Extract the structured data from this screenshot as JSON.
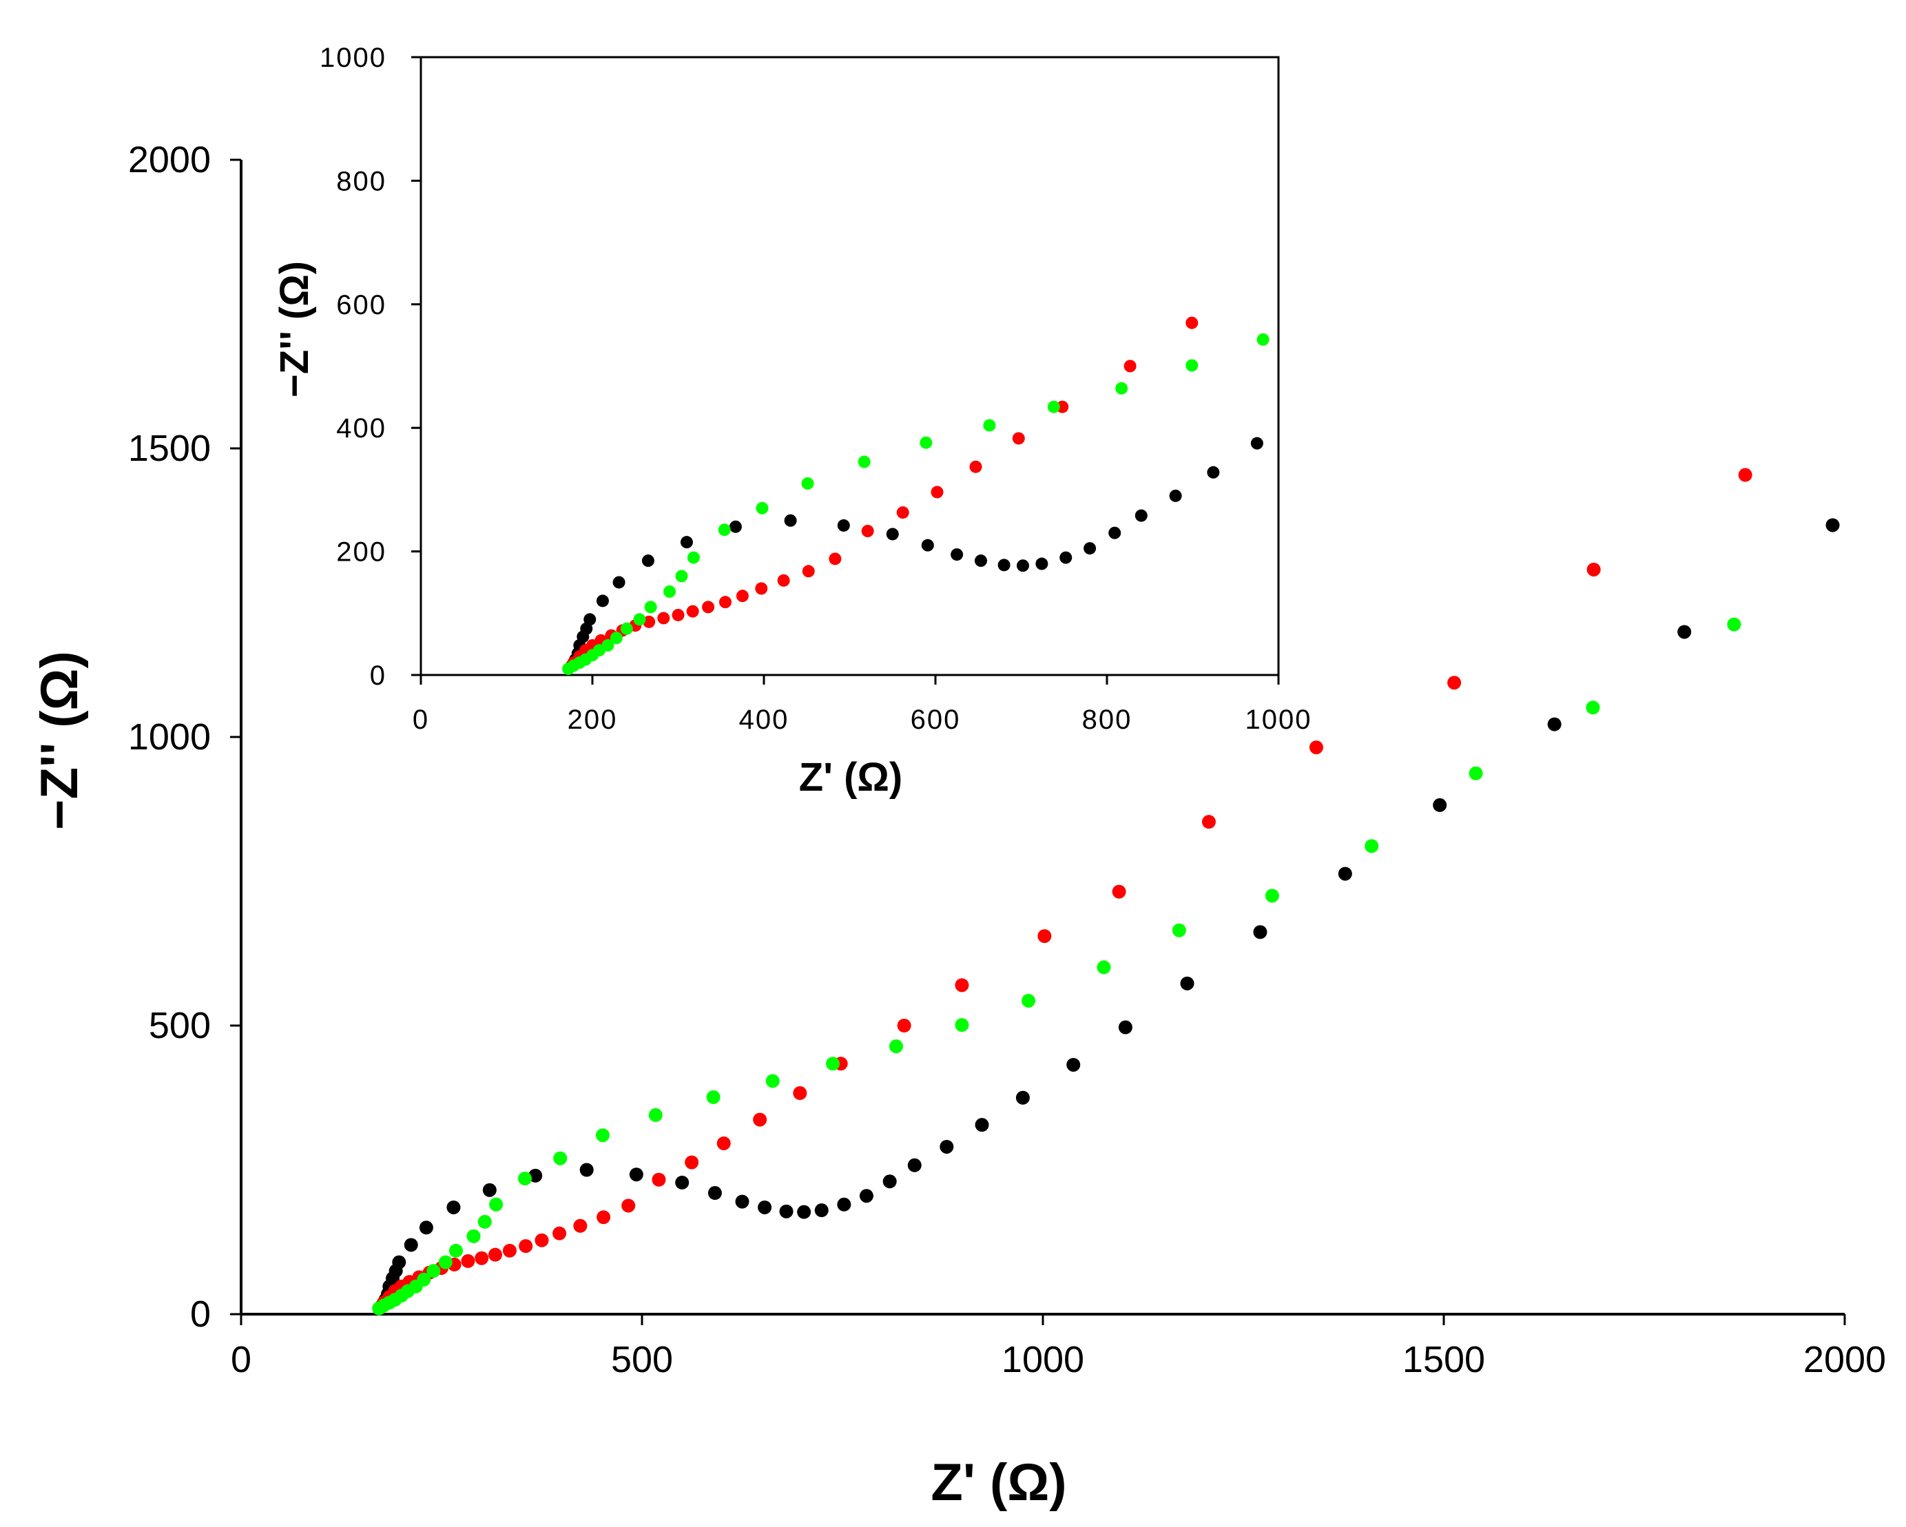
{
  "chart_data": [
    {
      "name": "main",
      "type": "scatter",
      "xlabel": "Z' (Ω)",
      "ylabel": "−Z'' (Ω)",
      "xlim": [
        0,
        2000
      ],
      "ylim": [
        0,
        2000
      ],
      "x_ticks": [
        "0",
        "500",
        "1000",
        "1500",
        "2000"
      ],
      "y_ticks": [
        "0",
        "500",
        "1000",
        "1500",
        "2000"
      ],
      "series": [
        {
          "name": "black",
          "color": "#000000",
          "points": [
            [
              176,
              15
            ],
            [
              180,
              25
            ],
            [
              183,
              35
            ],
            [
              185,
              48
            ],
            [
              189,
              62
            ],
            [
              193,
              75
            ],
            [
              197,
              90
            ],
            [
              212,
              120
            ],
            [
              231,
              150
            ],
            [
              265,
              185
            ],
            [
              310,
              215
            ],
            [
              367,
              240
            ],
            [
              431,
              250
            ],
            [
              493,
              242
            ],
            [
              550,
              228
            ],
            [
              591,
              210
            ],
            [
              625,
              195
            ],
            [
              653,
              185
            ],
            [
              680,
              178
            ],
            [
              702,
              177
            ],
            [
              724,
              180
            ],
            [
              752,
              190
            ],
            [
              780,
              205
            ],
            [
              809,
              230
            ],
            [
              840,
              258
            ],
            [
              880,
              290
            ],
            [
              924,
              328
            ],
            [
              975,
              375
            ],
            [
              1038,
              432
            ],
            [
              1103,
              497
            ],
            [
              1180,
              573
            ],
            [
              1271,
              662
            ],
            [
              1377,
              763
            ],
            [
              1495,
              882
            ],
            [
              1638,
              1022
            ],
            [
              1800,
              1182
            ],
            [
              1985,
              1367
            ]
          ]
        },
        {
          "name": "red",
          "color": "#ff0000",
          "points": [
            [
              178,
              20
            ],
            [
              185,
              30
            ],
            [
              192,
              40
            ],
            [
              200,
              48
            ],
            [
              210,
              56
            ],
            [
              222,
              64
            ],
            [
              235,
              72
            ],
            [
              250,
              80
            ],
            [
              266,
              86
            ],
            [
              283,
              92
            ],
            [
              300,
              97
            ],
            [
              317,
              103
            ],
            [
              335,
              110
            ],
            [
              355,
              118
            ],
            [
              375,
              128
            ],
            [
              397,
              140
            ],
            [
              423,
              153
            ],
            [
              452,
              168
            ],
            [
              483,
              188
            ],
            [
              521,
              233
            ],
            [
              562,
              263
            ],
            [
              602,
              296
            ],
            [
              647,
              337
            ],
            [
              697,
              383
            ],
            [
              748,
              434
            ],
            [
              827,
              500
            ],
            [
              899,
              570
            ],
            [
              1002,
              655
            ],
            [
              1095,
              732
            ],
            [
              1207,
              853
            ],
            [
              1341,
              982
            ],
            [
              1513,
              1094
            ],
            [
              1687,
              1290
            ],
            [
              1876,
              1454
            ]
          ]
        },
        {
          "name": "green",
          "color": "#00ff00",
          "points": [
            [
              172,
              10
            ],
            [
              178,
              15
            ],
            [
              185,
              20
            ],
            [
              192,
              25
            ],
            [
              200,
              32
            ],
            [
              208,
              40
            ],
            [
              218,
              48
            ],
            [
              228,
              60
            ],
            [
              240,
              75
            ],
            [
              255,
              90
            ],
            [
              268,
              110
            ],
            [
              290,
              135
            ],
            [
              304,
              160
            ],
            [
              318,
              190
            ],
            [
              354,
              235
            ],
            [
              398,
              270
            ],
            [
              451,
              310
            ],
            [
              517,
              345
            ],
            [
              589,
              376
            ],
            [
              663,
              404
            ],
            [
              738,
              434
            ],
            [
              817,
              464
            ],
            [
              899,
              501
            ],
            [
              982,
              543
            ],
            [
              1076,
              601
            ],
            [
              1170,
              665
            ],
            [
              1286,
              725
            ],
            [
              1410,
              811
            ],
            [
              1540,
              937
            ],
            [
              1686,
              1051
            ],
            [
              1862,
              1195
            ]
          ]
        }
      ]
    },
    {
      "name": "inset",
      "type": "scatter",
      "xlabel": "Z' (Ω)",
      "ylabel": "−Z'' (Ω)",
      "xlim": [
        0,
        1000
      ],
      "ylim": [
        0,
        1000
      ],
      "x_ticks": [
        "0",
        "200",
        "400",
        "600",
        "800",
        "1000"
      ],
      "y_ticks": [
        "0",
        "200",
        "400",
        "600",
        "800",
        "1000"
      ],
      "series": [
        {
          "name": "black",
          "color": "#000000",
          "points": [
            [
              176,
              15
            ],
            [
              180,
              25
            ],
            [
              183,
              35
            ],
            [
              185,
              48
            ],
            [
              189,
              62
            ],
            [
              193,
              75
            ],
            [
              197,
              90
            ],
            [
              212,
              120
            ],
            [
              231,
              150
            ],
            [
              265,
              185
            ],
            [
              310,
              215
            ],
            [
              367,
              240
            ],
            [
              431,
              250
            ],
            [
              493,
              242
            ],
            [
              550,
              228
            ],
            [
              591,
              210
            ],
            [
              625,
              195
            ],
            [
              653,
              185
            ],
            [
              680,
              178
            ],
            [
              702,
              177
            ],
            [
              724,
              180
            ],
            [
              752,
              190
            ],
            [
              780,
              205
            ],
            [
              809,
              230
            ],
            [
              840,
              258
            ],
            [
              880,
              290
            ],
            [
              924,
              328
            ],
            [
              975,
              375
            ]
          ]
        },
        {
          "name": "red",
          "color": "#ff0000",
          "points": [
            [
              178,
              20
            ],
            [
              185,
              30
            ],
            [
              192,
              40
            ],
            [
              200,
              48
            ],
            [
              210,
              56
            ],
            [
              222,
              64
            ],
            [
              235,
              72
            ],
            [
              250,
              80
            ],
            [
              266,
              86
            ],
            [
              283,
              92
            ],
            [
              300,
              97
            ],
            [
              317,
              103
            ],
            [
              335,
              110
            ],
            [
              355,
              118
            ],
            [
              375,
              128
            ],
            [
              397,
              140
            ],
            [
              423,
              153
            ],
            [
              452,
              168
            ],
            [
              483,
              188
            ],
            [
              521,
              233
            ],
            [
              562,
              263
            ],
            [
              602,
              296
            ],
            [
              647,
              337
            ],
            [
              697,
              383
            ],
            [
              748,
              434
            ],
            [
              827,
              500
            ],
            [
              899,
              570
            ]
          ]
        },
        {
          "name": "green",
          "color": "#00ff00",
          "points": [
            [
              172,
              10
            ],
            [
              178,
              15
            ],
            [
              185,
              20
            ],
            [
              192,
              25
            ],
            [
              200,
              32
            ],
            [
              208,
              40
            ],
            [
              218,
              48
            ],
            [
              228,
              60
            ],
            [
              240,
              75
            ],
            [
              255,
              90
            ],
            [
              268,
              110
            ],
            [
              290,
              135
            ],
            [
              304,
              160
            ],
            [
              318,
              190
            ],
            [
              354,
              235
            ],
            [
              398,
              270
            ],
            [
              451,
              310
            ],
            [
              517,
              345
            ],
            [
              589,
              376
            ],
            [
              663,
              404
            ],
            [
              738,
              434
            ],
            [
              817,
              464
            ],
            [
              899,
              501
            ],
            [
              982,
              543
            ]
          ]
        }
      ]
    }
  ]
}
